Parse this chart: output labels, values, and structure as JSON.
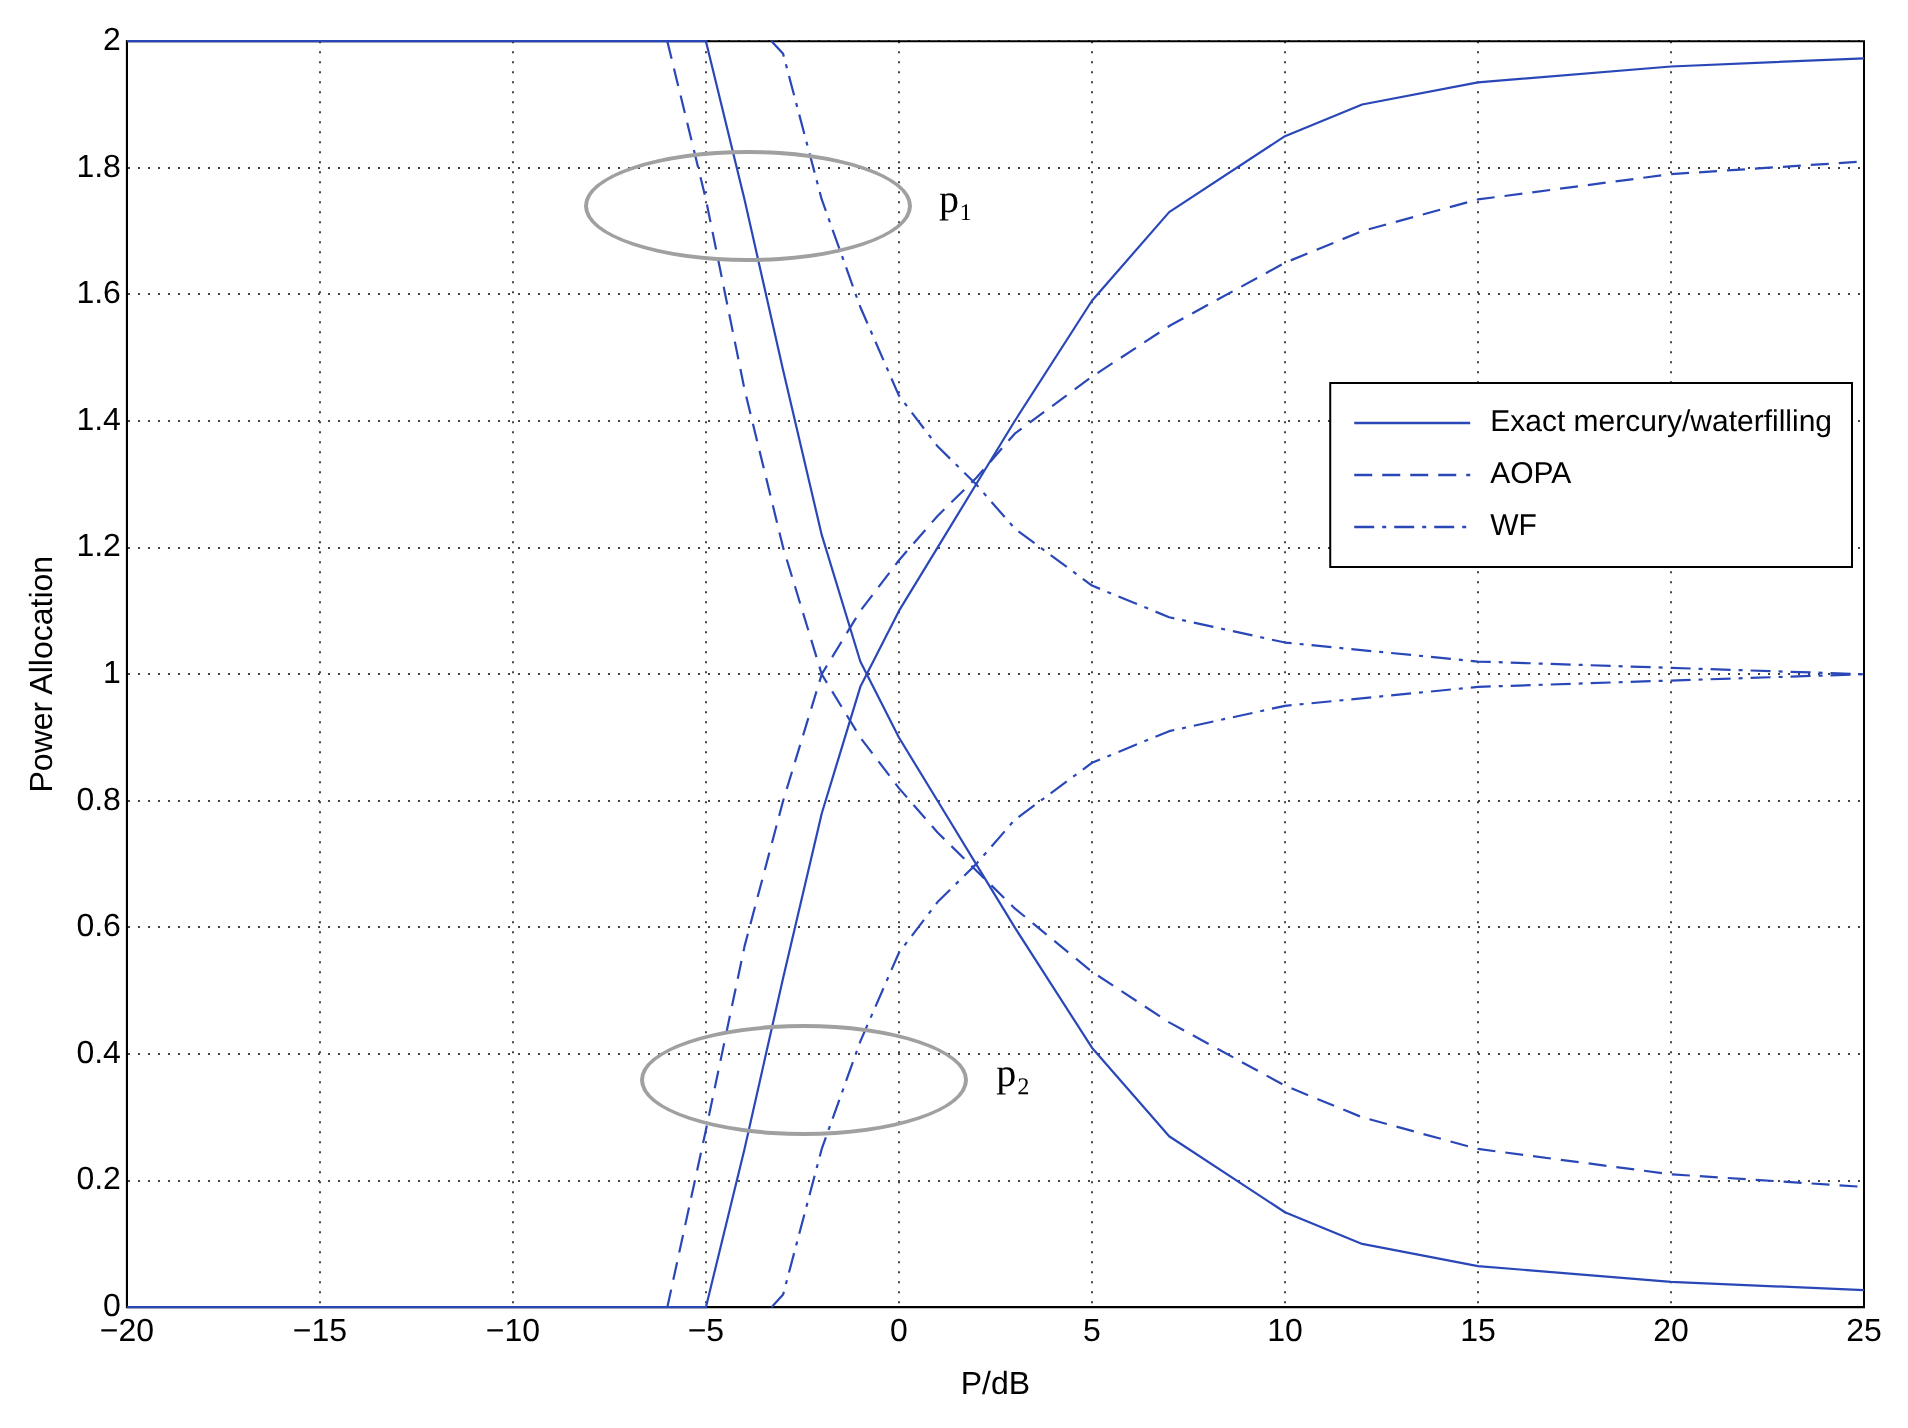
{
  "chart_data": {
    "type": "line",
    "xlabel": "P/dB",
    "ylabel": "Power Allocation",
    "xlim": [
      -20,
      25
    ],
    "ylim": [
      0,
      2
    ],
    "xticks": [
      {
        "value": -20,
        "label": "−20"
      },
      {
        "value": -15,
        "label": "−15"
      },
      {
        "value": -10,
        "label": "−10"
      },
      {
        "value": -5,
        "label": "−5"
      },
      0,
      5,
      10,
      15,
      20,
      25
    ],
    "yticks": [
      0,
      0.2,
      0.4,
      0.6,
      0.8,
      1,
      1.2,
      1.4,
      1.6,
      1.8,
      2
    ],
    "grid": true,
    "legend": "right",
    "marker": "none",
    "annotations": [
      "p₁",
      "p₂"
    ],
    "series": [
      {
        "name": "Exact mercury/waterfilling",
        "color": "#2a47b8",
        "line_style": "solid",
        "x": [
          -20,
          -5,
          -4,
          -3,
          -2,
          -1,
          0,
          1,
          2,
          3,
          5,
          7,
          10,
          12,
          15,
          20,
          25
        ],
        "values": [
          2,
          2,
          1.75,
          1.48,
          1.22,
          1.02,
          0.9,
          0.8,
          0.7,
          0.6,
          0.41,
          0.27,
          0.15,
          0.1,
          0.065,
          0.04,
          0.027
        ]
      },
      {
        "color": "#2a47b8",
        "line_style": "solid",
        "x": [
          -20,
          -5,
          -4,
          -3,
          -2,
          -1,
          0,
          1,
          2,
          3,
          5,
          7,
          10,
          12,
          15,
          20,
          25
        ],
        "values": [
          0,
          0,
          0.25,
          0.52,
          0.78,
          0.98,
          1.1,
          1.2,
          1.3,
          1.4,
          1.59,
          1.73,
          1.85,
          1.9,
          1.935,
          1.96,
          1.973
        ]
      },
      {
        "name": "AOPA",
        "color": "#2a47b8",
        "line_style": "dashed",
        "x": [
          -6,
          -5,
          -4,
          -3,
          -2,
          -1,
          0,
          1,
          2,
          3,
          5,
          7,
          10,
          12,
          15,
          20,
          25
        ],
        "values": [
          2,
          1.75,
          1.45,
          1.2,
          1.0,
          0.9,
          0.82,
          0.75,
          0.69,
          0.63,
          0.53,
          0.45,
          0.35,
          0.3,
          0.25,
          0.21,
          0.19
        ]
      },
      {
        "color": "#2a47b8",
        "line_style": "dashed",
        "x": [
          -6,
          -5,
          -4,
          -3,
          -2,
          -1,
          0,
          1,
          2,
          3,
          5,
          7,
          10,
          12,
          15,
          20,
          25
        ],
        "values": [
          0,
          0.28,
          0.57,
          0.8,
          1.0,
          1.1,
          1.18,
          1.25,
          1.31,
          1.38,
          1.47,
          1.55,
          1.65,
          1.7,
          1.75,
          1.79,
          1.81
        ]
      },
      {
        "name": "WF",
        "color": "#2a47b8",
        "line_style": "dotted",
        "x": [
          -3.3,
          -3,
          -2,
          -1,
          0,
          1,
          2,
          3,
          5,
          7,
          10,
          15,
          20,
          25
        ],
        "values": [
          2,
          1.98,
          1.75,
          1.58,
          1.44,
          1.36,
          1.3,
          1.23,
          1.14,
          1.09,
          1.05,
          1.02,
          1.01,
          1.0
        ]
      },
      {
        "color": "#2a47b8",
        "line_style": "dotted",
        "x": [
          -3.3,
          -3,
          -2,
          -1,
          0,
          1,
          2,
          3,
          5,
          7,
          10,
          15,
          20,
          25
        ],
        "values": [
          0,
          0.02,
          0.25,
          0.42,
          0.56,
          0.64,
          0.7,
          0.77,
          0.86,
          0.91,
          0.95,
          0.98,
          0.99,
          1.0
        ]
      }
    ]
  }
}
